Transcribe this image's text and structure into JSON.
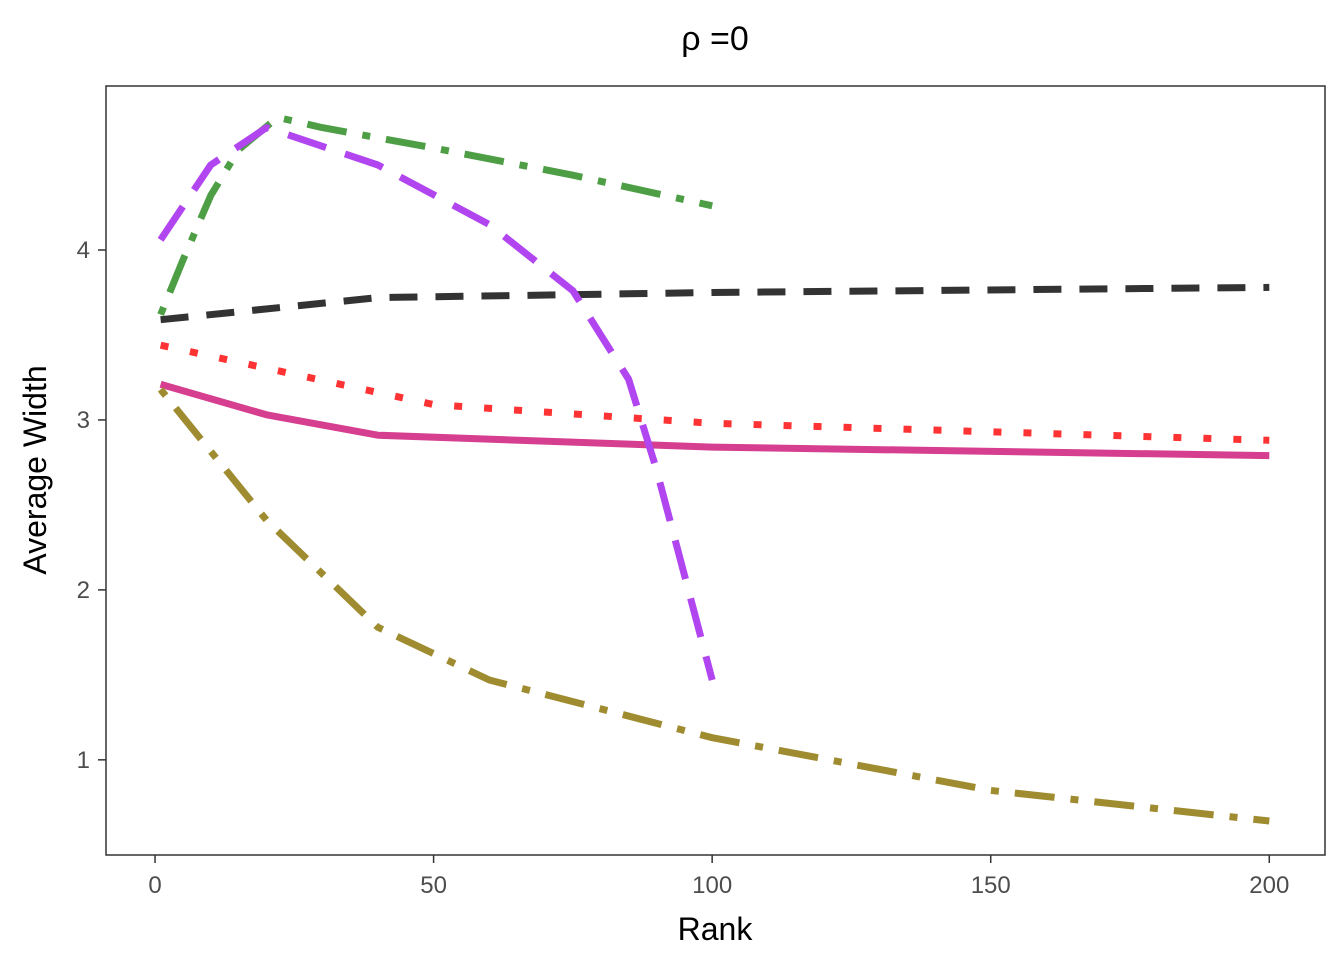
{
  "chart_data": {
    "type": "line",
    "title": "ρ =0",
    "xlabel": "Rank",
    "ylabel": "Average Width",
    "xlim": [
      -8.8,
      210
    ],
    "ylim": [
      0.44,
      4.965
    ],
    "xticks": [
      0,
      50,
      100,
      150,
      200
    ],
    "yticks": [
      1,
      2,
      3,
      4
    ],
    "grid": false,
    "legend": "none",
    "series": [
      {
        "color": "#333333",
        "dash": "dashed",
        "x": [
          1,
          40,
          100,
          200
        ],
        "y": [
          3.59,
          3.72,
          3.75,
          3.78
        ]
      },
      {
        "color": "#FF3333",
        "dash": "dotted",
        "x": [
          1,
          50,
          100,
          150,
          200
        ],
        "y": [
          3.44,
          3.09,
          2.98,
          2.93,
          2.88
        ]
      },
      {
        "color": "#D63F8F",
        "dash": "solid",
        "x": [
          1,
          20,
          40,
          100,
          200
        ],
        "y": [
          3.21,
          3.03,
          2.91,
          2.84,
          2.79
        ]
      },
      {
        "color": "#A08C30",
        "dash": "dotdash",
        "x": [
          1,
          20,
          40,
          60,
          100,
          150,
          200
        ],
        "y": [
          3.18,
          2.41,
          1.78,
          1.47,
          1.13,
          0.82,
          0.64
        ]
      },
      {
        "color": "#4D9E45",
        "dash": "dotdash",
        "x": [
          1,
          5,
          10,
          15,
          22,
          30,
          50,
          75,
          100
        ],
        "y": [
          3.62,
          3.94,
          4.32,
          4.59,
          4.78,
          4.72,
          4.6,
          4.44,
          4.26
        ]
      },
      {
        "color": "#B146F0",
        "dash": "longdash",
        "x": [
          1,
          10,
          20,
          40,
          60,
          75,
          85,
          90,
          100
        ],
        "y": [
          4.06,
          4.5,
          4.72,
          4.5,
          4.15,
          3.76,
          3.24,
          2.71,
          1.47
        ]
      }
    ]
  }
}
